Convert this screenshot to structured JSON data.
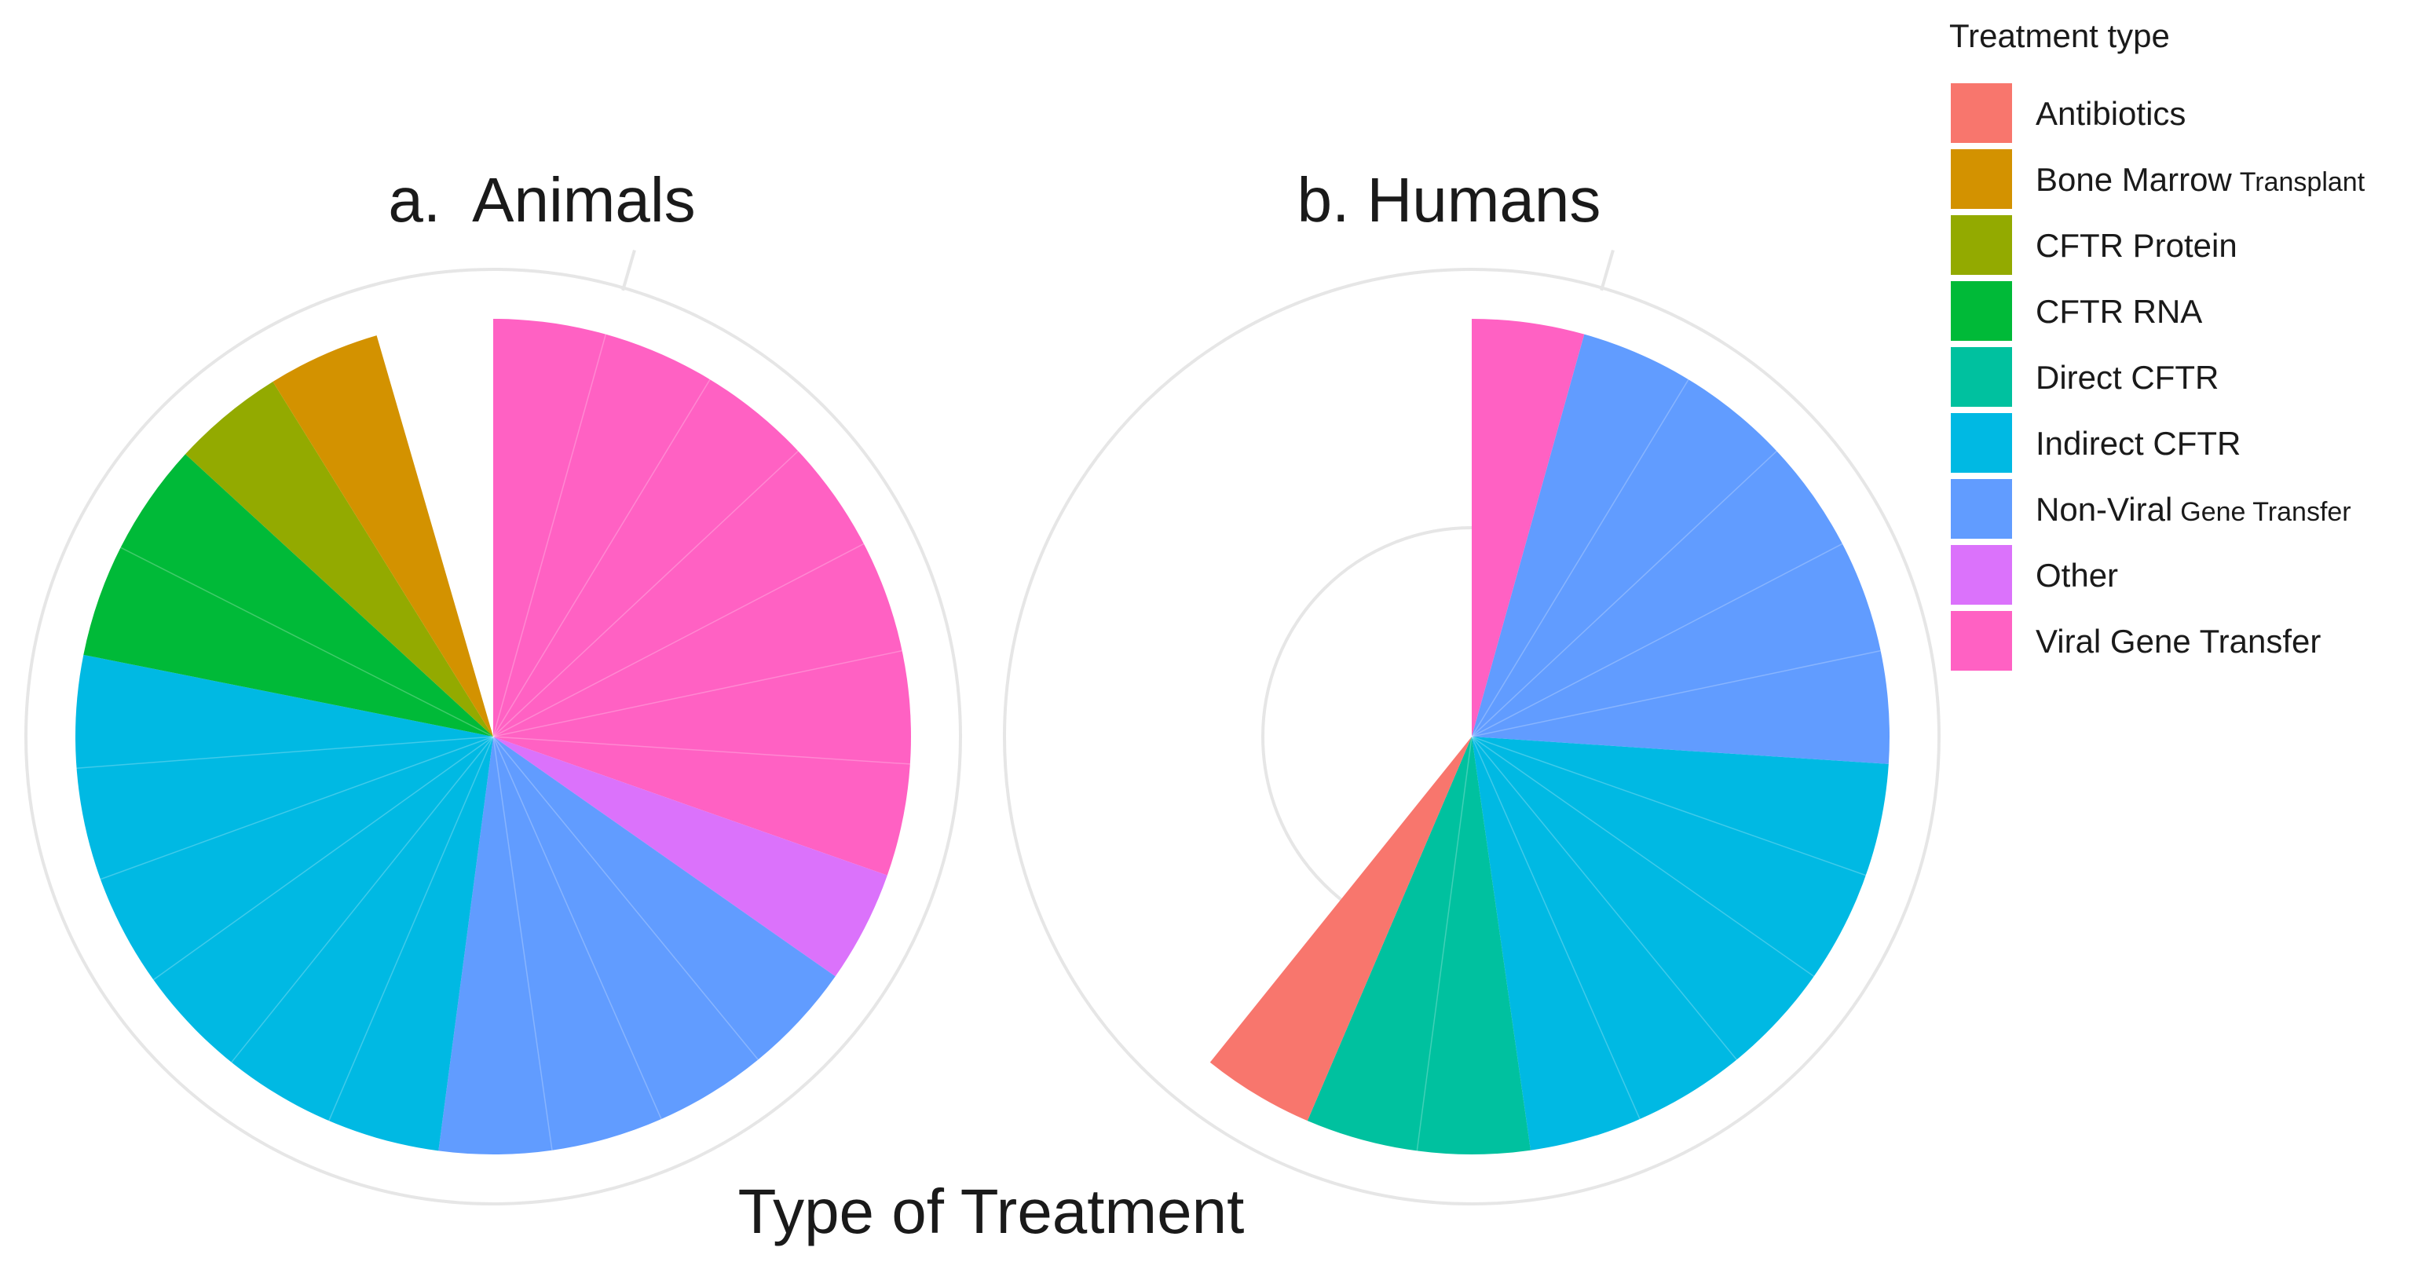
{
  "figure": {
    "xlabel": "Type of Treatment"
  },
  "legend": {
    "title": "Treatment type",
    "position": "right",
    "entries": [
      {
        "key": "antibiotics",
        "main": "Antibiotics",
        "small": "",
        "color": "#F8766D"
      },
      {
        "key": "bone_marrow",
        "main": "Bone Marrow",
        "small": "Transplant",
        "color": "#D39200"
      },
      {
        "key": "cftr_protein",
        "main": "CFTR Protein",
        "small": "",
        "color": "#93AA00"
      },
      {
        "key": "cftr_rna",
        "main": "CFTR RNA",
        "small": "",
        "color": "#00BA38"
      },
      {
        "key": "direct_cftr",
        "main": "Direct CFTR",
        "small": "",
        "color": "#00C19F"
      },
      {
        "key": "indirect_cftr",
        "main": "Indirect CFTR",
        "small": "",
        "color": "#00B9E3"
      },
      {
        "key": "non_viral",
        "main": "Non-Viral",
        "small": "Gene Transfer",
        "color": "#619CFF"
      },
      {
        "key": "other",
        "main": "Other",
        "small": "",
        "color": "#DB72FB"
      },
      {
        "key": "viral",
        "main": "Viral Gene Transfer",
        "small": "",
        "color": "#FF61C3"
      }
    ]
  },
  "chart_data": [
    {
      "type": "pie",
      "title": "a.  Animals",
      "unit": "studies",
      "axis_max": 22,
      "grid": true,
      "slices": [
        {
          "key": "viral",
          "label": "Viral Gene Transfer",
          "value": 7
        },
        {
          "key": "other",
          "label": "Other",
          "value": 1
        },
        {
          "key": "non_viral",
          "label": "Non-Viral Gene Transfer",
          "value": 4
        },
        {
          "key": "indirect_cftr",
          "label": "Indirect CFTR",
          "value": 6
        },
        {
          "key": "cftr_rna",
          "label": "CFTR RNA",
          "value": 2
        },
        {
          "key": "cftr_protein",
          "label": "CFTR Protein",
          "value": 1
        },
        {
          "key": "bone_marrow",
          "label": "Bone Marrow Transplant",
          "value": 1
        }
      ]
    },
    {
      "type": "pie",
      "title": "b. Humans",
      "unit": "studies",
      "axis_max": 22,
      "grid": true,
      "slices": [
        {
          "key": "viral",
          "label": "Viral Gene Transfer",
          "value": 1
        },
        {
          "key": "non_viral",
          "label": "Non-Viral Gene Transfer",
          "value": 5
        },
        {
          "key": "indirect_cftr",
          "label": "Indirect CFTR",
          "value": 5
        },
        {
          "key": "direct_cftr",
          "label": "Direct CFTR",
          "value": 2
        },
        {
          "key": "antibiotics",
          "label": "Antibiotics",
          "value": 1
        }
      ]
    }
  ]
}
